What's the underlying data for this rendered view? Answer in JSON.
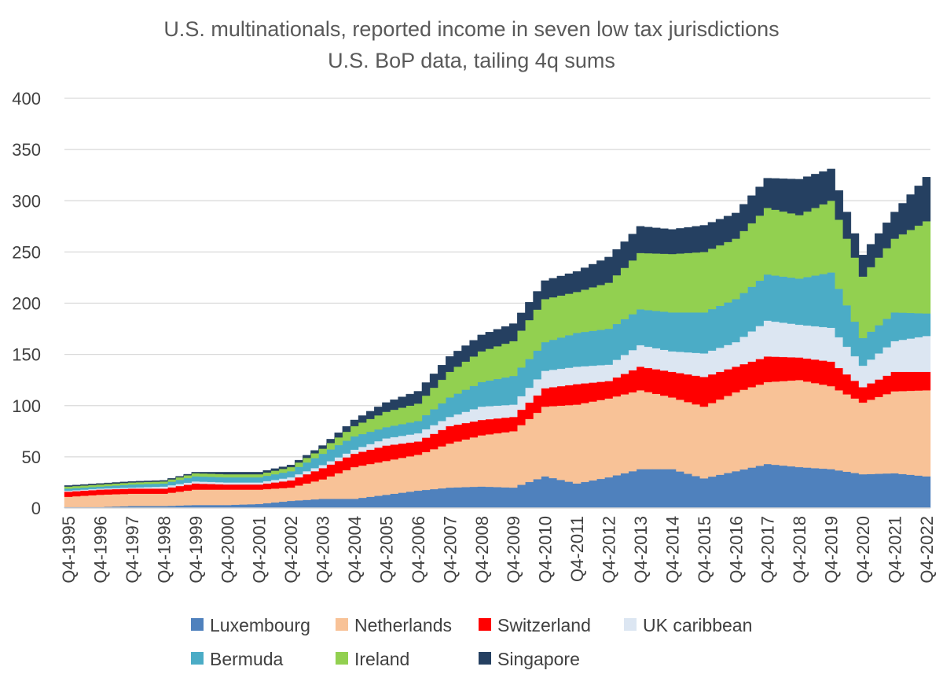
{
  "chart_data": {
    "type": "area",
    "stacked": true,
    "title": [
      "U.S. multinationals, reported income in seven low tax jurisdictions",
      "U.S. BoP data, tailing 4q sums"
    ],
    "xlabel": "",
    "ylabel": "",
    "ylim": [
      0,
      400
    ],
    "yticks": [
      0,
      50,
      100,
      150,
      200,
      250,
      300,
      350,
      400
    ],
    "grid": true,
    "legend_position": "bottom",
    "x_start": "Q4-1995",
    "x_end": "Q4-2022",
    "frequency": "quarterly",
    "xtick_labels": [
      "Q4-1995",
      "Q4-1996",
      "Q4-1997",
      "Q4-1998",
      "Q4-1999",
      "Q4-2000",
      "Q4-2001",
      "Q4-2002",
      "Q4-2003",
      "Q4-2004",
      "Q4-2005",
      "Q4-2006",
      "Q4-2007",
      "Q4-2008",
      "Q4-2009",
      "Q4-2010",
      "Q4-2011",
      "Q4-2012",
      "Q4-2013",
      "Q4-2014",
      "Q4-2015",
      "Q4-2016",
      "Q4-2017",
      "Q4-2018",
      "Q4-2019",
      "Q4-2020",
      "Q4-2021",
      "Q4-2022"
    ],
    "anchor_x": [
      "Q4-1995",
      "Q4-1996",
      "Q4-1997",
      "Q4-1998",
      "Q4-1999",
      "Q4-2000",
      "Q4-2001",
      "Q4-2002",
      "Q4-2003",
      "Q4-2004",
      "Q4-2005",
      "Q4-2006",
      "Q4-2007",
      "Q4-2008",
      "Q4-2009",
      "Q4-2010",
      "Q4-2011",
      "Q4-2012",
      "Q4-2013",
      "Q4-2014",
      "Q4-2015",
      "Q4-2016",
      "Q4-2017",
      "Q4-2018",
      "Q4-2019",
      "Q4-2020",
      "Q4-2021",
      "Q4-2022"
    ],
    "series": [
      {
        "name": "Luxembourg",
        "color": "#4f81bd",
        "values": [
          1,
          1,
          2,
          2,
          3,
          3,
          4,
          7,
          9,
          9,
          13,
          17,
          20,
          21,
          20,
          31,
          24,
          30,
          38,
          38,
          29,
          36,
          43,
          40,
          38,
          33,
          34,
          31
        ]
      },
      {
        "name": "Netherlands",
        "color": "#f8c297",
        "values": [
          10,
          12,
          12,
          12,
          15,
          15,
          14,
          13,
          19,
          31,
          33,
          35,
          43,
          50,
          55,
          68,
          77,
          77,
          77,
          70,
          70,
          77,
          80,
          85,
          81,
          70,
          80,
          84
        ]
      },
      {
        "name": "Switzerland",
        "color": "#ff0000",
        "values": [
          5,
          5,
          5,
          5,
          6,
          5,
          5,
          7,
          11,
          13,
          15,
          13,
          17,
          15,
          14,
          18,
          20,
          17,
          23,
          25,
          29,
          25,
          25,
          22,
          24,
          15,
          19,
          18
        ]
      },
      {
        "name": "UK caribbean",
        "color": "#dce6f2",
        "values": [
          1,
          1,
          1,
          2,
          2,
          2,
          2,
          3,
          3,
          4,
          7,
          8,
          9,
          13,
          12,
          17,
          17,
          16,
          21,
          20,
          23,
          24,
          35,
          32,
          33,
          21,
          30,
          35
        ]
      },
      {
        "name": "Bermuda",
        "color": "#4bacc6",
        "values": [
          2,
          2,
          3,
          3,
          5,
          5,
          5,
          6,
          11,
          13,
          11,
          12,
          19,
          24,
          28,
          28,
          33,
          35,
          35,
          38,
          40,
          42,
          45,
          45,
          54,
          27,
          28,
          22
        ]
      },
      {
        "name": "Ireland",
        "color": "#92d050",
        "values": [
          2,
          2,
          2,
          2,
          3,
          3,
          3,
          4,
          5,
          10,
          15,
          17,
          25,
          30,
          34,
          42,
          40,
          45,
          55,
          57,
          59,
          59,
          65,
          62,
          70,
          60,
          72,
          90
        ]
      },
      {
        "name": "Singapore",
        "color": "#254061",
        "values": [
          1,
          1,
          1,
          1,
          1,
          2,
          2,
          2,
          3,
          6,
          9,
          12,
          15,
          16,
          17,
          18,
          20,
          25,
          26,
          24,
          26,
          25,
          29,
          35,
          31,
          21,
          26,
          43
        ]
      }
    ]
  }
}
